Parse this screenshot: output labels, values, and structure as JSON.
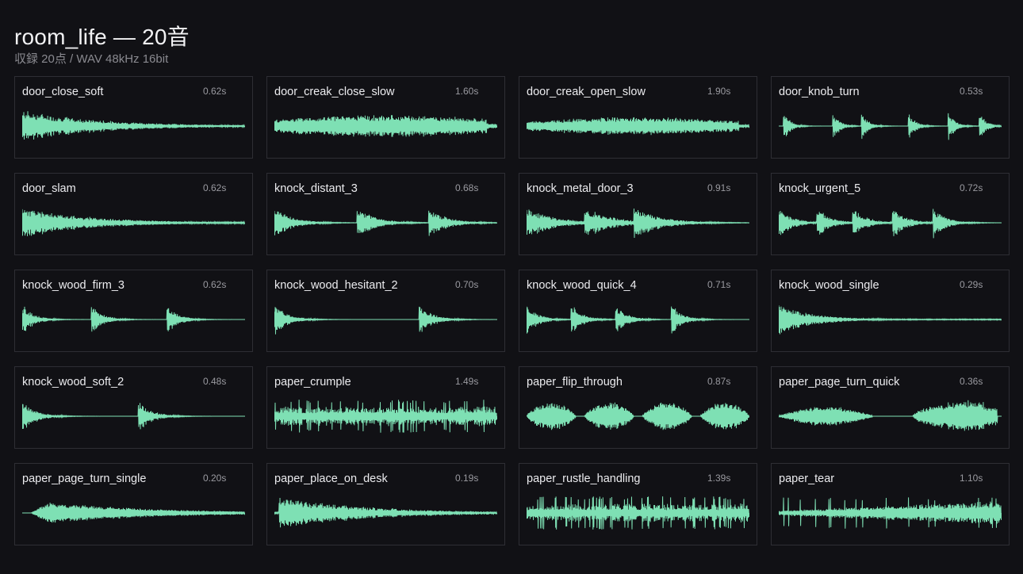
{
  "header": {
    "title": "room_life — 20音",
    "subtitle": "収録 20点 / WAV 48kHz 16bit"
  },
  "colors": {
    "wave": "#7ee0b4",
    "background": "#111115",
    "border": "#2e2e34"
  },
  "sounds": [
    {
      "name": "door_close_soft",
      "duration": "0.62s",
      "hits": [
        0.0
      ],
      "decay": 0.35,
      "sustain": 0.06
    },
    {
      "name": "door_creak_close_slow",
      "duration": "1.60s",
      "hits": [],
      "decay": 0,
      "sustain": 0.4,
      "mode": "noise"
    },
    {
      "name": "door_creak_open_slow",
      "duration": "1.90s",
      "hits": [],
      "decay": 0,
      "sustain": 0.28,
      "mode": "noise"
    },
    {
      "name": "door_knob_turn",
      "duration": "0.53s",
      "hits": [
        0.02,
        0.24,
        0.37,
        0.58,
        0.76,
        0.9
      ],
      "decay": 0.03,
      "sustain": 0.0
    },
    {
      "name": "door_slam",
      "duration": "0.62s",
      "hits": [
        0.0
      ],
      "decay": 0.3,
      "sustain": 0.05
    },
    {
      "name": "knock_distant_3",
      "duration": "0.68s",
      "hits": [
        0.0,
        0.37,
        0.69
      ],
      "decay": 0.08,
      "sustain": 0.0
    },
    {
      "name": "knock_metal_door_3",
      "duration": "0.91s",
      "hits": [
        0.0,
        0.26,
        0.48
      ],
      "decay": 0.12,
      "sustain": 0.0
    },
    {
      "name": "knock_urgent_5",
      "duration": "0.72s",
      "hits": [
        0.0,
        0.17,
        0.33,
        0.51,
        0.69
      ],
      "decay": 0.06,
      "sustain": 0.0
    },
    {
      "name": "knock_wood_firm_3",
      "duration": "0.62s",
      "hits": [
        0.0,
        0.31,
        0.65
      ],
      "decay": 0.05,
      "sustain": 0.0
    },
    {
      "name": "knock_wood_hesitant_2",
      "duration": "0.70s",
      "hits": [
        0.0,
        0.65
      ],
      "decay": 0.06,
      "sustain": 0.0
    },
    {
      "name": "knock_wood_quick_4",
      "duration": "0.71s",
      "hits": [
        0.0,
        0.2,
        0.4,
        0.65
      ],
      "decay": 0.05,
      "sustain": 0.0
    },
    {
      "name": "knock_wood_single",
      "duration": "0.29s",
      "hits": [
        0.0
      ],
      "decay": 0.15,
      "sustain": 0.03
    },
    {
      "name": "knock_wood_soft_2",
      "duration": "0.48s",
      "hits": [
        0.0,
        0.52
      ],
      "decay": 0.06,
      "sustain": 0.0
    },
    {
      "name": "paper_crumple",
      "duration": "1.49s",
      "hits": [],
      "decay": 0,
      "sustain": 0.6,
      "mode": "crackle"
    },
    {
      "name": "paper_flip_through",
      "duration": "0.87s",
      "hits": [
        0.0,
        0.26,
        0.52,
        0.78
      ],
      "decay": 0,
      "sustain": 0.0,
      "mode": "bursts"
    },
    {
      "name": "paper_page_turn_quick",
      "duration": "0.36s",
      "hits": [
        0.0,
        0.6
      ],
      "decay": 0,
      "sustain": 0.0,
      "mode": "swells"
    },
    {
      "name": "paper_page_turn_single",
      "duration": "0.20s",
      "hits": [
        0.04
      ],
      "decay": 0,
      "sustain": 0.0,
      "mode": "swell"
    },
    {
      "name": "paper_place_on_desk",
      "duration": "0.19s",
      "hits": [
        0.02
      ],
      "decay": 0.4,
      "sustain": 0.05
    },
    {
      "name": "paper_rustle_handling",
      "duration": "1.39s",
      "hits": [],
      "decay": 0,
      "sustain": 0.55,
      "mode": "crackle"
    },
    {
      "name": "paper_tear",
      "duration": "1.10s",
      "hits": [],
      "decay": 0,
      "sustain": 0.45,
      "mode": "tear"
    }
  ]
}
